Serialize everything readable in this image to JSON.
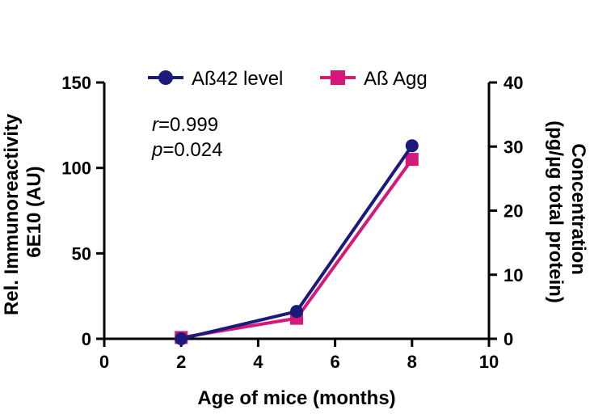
{
  "chart_data": {
    "type": "line",
    "title": "",
    "xlabel": "Age of mice (months)",
    "ylabel_left": [
      "Rel. Immunoreactivity",
      "6E10 (AU)"
    ],
    "ylabel_right": [
      "Concentration",
      "(pg/µg total protein)"
    ],
    "xlim": [
      0,
      10
    ],
    "ylim_left": [
      0,
      150
    ],
    "ylim_right": [
      0,
      40
    ],
    "x_ticks": [
      "0",
      "2",
      "4",
      "6",
      "8",
      "10"
    ],
    "y_left_ticks": [
      "0",
      "50",
      "100",
      "150"
    ],
    "y_right_ticks": [
      "0",
      "10",
      "20",
      "30",
      "40"
    ],
    "grid": false,
    "legend_position": "top",
    "annotations": {
      "r_symbol": "r",
      "r_value": "=0.999",
      "p_symbol": "p",
      "p_value": "=0.024"
    },
    "series": [
      {
        "name": "Aß42 level",
        "axis": "left",
        "marker": "circle",
        "color": "#1a1a7a",
        "x": [
          2,
          5,
          8
        ],
        "y": [
          0,
          16,
          113
        ]
      },
      {
        "name": "Aß Agg",
        "axis": "right",
        "marker": "square",
        "color": "#d4197a",
        "x": [
          2,
          5,
          8
        ],
        "y": [
          0.2,
          3.2,
          28
        ]
      }
    ]
  }
}
